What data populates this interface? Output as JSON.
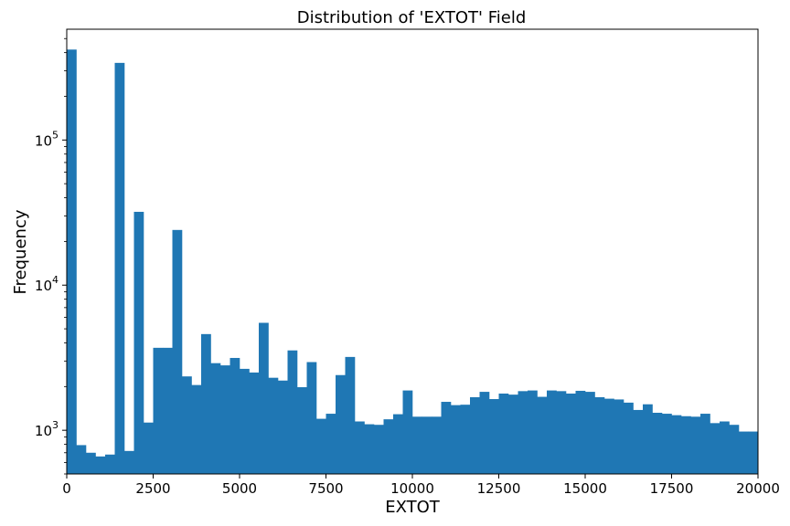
{
  "chart_data": {
    "type": "bar",
    "title": "Distribution of 'EXTOT' Field",
    "xlabel": "EXTOT",
    "ylabel": "Frequency",
    "xlim": [
      0,
      20000
    ],
    "ylim": [
      500,
      580000
    ],
    "yscale": "log",
    "grid": false,
    "color": "#1f77b4",
    "bin_width": 277.78,
    "x_ticks": [
      0,
      2500,
      5000,
      7500,
      10000,
      12500,
      15000,
      17500,
      20000
    ],
    "x_tick_labels": [
      "0",
      "2500",
      "5000",
      "7500",
      "10000",
      "12500",
      "15000",
      "17500",
      "20000"
    ],
    "y_ticks": [
      1000,
      10000,
      100000
    ],
    "y_tick_labels": [
      {
        "base": "10",
        "exp": "3"
      },
      {
        "base": "10",
        "exp": "4"
      },
      {
        "base": "10",
        "exp": "5"
      }
    ],
    "bin_starts": [
      0,
      277.78,
      555.56,
      833.33,
      1111.11,
      1388.89,
      1666.67,
      1944.44,
      2222.22,
      2500,
      2777.78,
      3055.56,
      3333.33,
      3611.11,
      3888.89,
      4166.67,
      4444.44,
      4722.22,
      5000,
      5277.78,
      5555.56,
      5833.33,
      6111.11,
      6388.89,
      6666.67,
      6944.44,
      7222.22,
      7500,
      7777.78,
      8055.56,
      8333.33,
      8611.11,
      8888.89,
      9166.67,
      9444.44,
      9722.22,
      10000,
      10277.78,
      10555.56,
      10833.33,
      11111.11,
      11388.89,
      11666.67,
      11944.44,
      12222.22,
      12500,
      12777.78,
      13055.56,
      13333.33,
      13611.11,
      13888.89,
      14166.67,
      14444.44,
      14722.22,
      15000,
      15277.78,
      15555.56,
      15833.33,
      16111.11,
      16388.89,
      16666.67,
      16944.44,
      17222.22,
      17500,
      17777.78,
      18055.56,
      18333.33,
      18611.11,
      18888.89,
      19166.67,
      19444.44,
      19722.22
    ],
    "values": [
      420000,
      790,
      700,
      660,
      680,
      340000,
      720,
      32000,
      1130,
      3700,
      3700,
      24000,
      2350,
      2050,
      4600,
      2900,
      2800,
      3150,
      2650,
      2500,
      5500,
      2300,
      2200,
      3550,
      1980,
      2950,
      1200,
      1300,
      2400,
      3200,
      1150,
      1100,
      1090,
      1190,
      1290,
      1880,
      1240,
      1240,
      1240,
      1570,
      1490,
      1500,
      1690,
      1840,
      1640,
      1790,
      1760,
      1860,
      1880,
      1700,
      1880,
      1860,
      1790,
      1870,
      1840,
      1690,
      1650,
      1630,
      1550,
      1380,
      1510,
      1320,
      1300,
      1270,
      1250,
      1240,
      1300,
      1120,
      1150,
      1090,
      980,
      980
    ]
  }
}
